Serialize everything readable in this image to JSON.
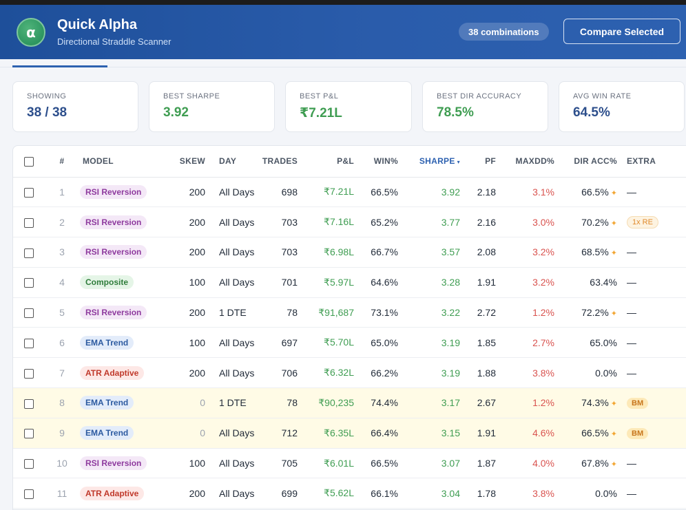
{
  "header": {
    "logo_glyph": "α",
    "title": "Quick Alpha",
    "subtitle": "Directional Straddle Scanner",
    "combinations": "38 combinations",
    "compare_label": "Compare Selected"
  },
  "stats": [
    {
      "label": "SHOWING",
      "value": "38 / 38"
    },
    {
      "label": "BEST SHARPE",
      "value": "3.92"
    },
    {
      "label": "BEST P&L",
      "value": "₹7.21L"
    },
    {
      "label": "BEST DIR ACCURACY",
      "value": "78.5%"
    },
    {
      "label": "AVG WIN RATE",
      "value": "64.5%"
    }
  ],
  "columns": {
    "num": "#",
    "model": "MODEL",
    "skew": "SKEW",
    "day": "DAY",
    "trades": "TRADES",
    "pnl": "P&L",
    "win": "WIN%",
    "sharpe": "SHARPE",
    "sort_glyph": "▾",
    "pf": "PF",
    "maxdd": "MAXDD%",
    "diracc": "DIR ACC%",
    "extra": "EXTRA"
  },
  "rows": [
    {
      "num": "1",
      "model": "RSI Reversion",
      "skew": "200",
      "day": "All Days",
      "trades": "698",
      "pnl": "₹7.21L",
      "win": "66.5%",
      "sharpe": "3.92",
      "pf": "2.18",
      "maxdd": "3.1%",
      "diracc": "66.5%",
      "star": "✦",
      "extra": "—"
    },
    {
      "num": "2",
      "model": "RSI Reversion",
      "skew": "200",
      "day": "All Days",
      "trades": "703",
      "pnl": "₹7.16L",
      "win": "65.2%",
      "sharpe": "3.77",
      "pf": "2.16",
      "maxdd": "3.0%",
      "diracc": "70.2%",
      "star": "✦",
      "extra": "1x RE"
    },
    {
      "num": "3",
      "model": "RSI Reversion",
      "skew": "200",
      "day": "All Days",
      "trades": "703",
      "pnl": "₹6.98L",
      "win": "66.7%",
      "sharpe": "3.57",
      "pf": "2.08",
      "maxdd": "3.2%",
      "diracc": "68.5%",
      "star": "✦",
      "extra": "—"
    },
    {
      "num": "4",
      "model": "Composite",
      "skew": "100",
      "day": "All Days",
      "trades": "701",
      "pnl": "₹5.97L",
      "win": "64.6%",
      "sharpe": "3.28",
      "pf": "1.91",
      "maxdd": "3.2%",
      "diracc": "63.4%",
      "star": "",
      "extra": "—"
    },
    {
      "num": "5",
      "model": "RSI Reversion",
      "skew": "200",
      "day": "1 DTE",
      "trades": "78",
      "pnl": "₹91,687",
      "win": "73.1%",
      "sharpe": "3.22",
      "pf": "2.72",
      "maxdd": "1.2%",
      "diracc": "72.2%",
      "star": "✦",
      "extra": "—"
    },
    {
      "num": "6",
      "model": "EMA Trend",
      "skew": "100",
      "day": "All Days",
      "trades": "697",
      "pnl": "₹5.70L",
      "win": "65.0%",
      "sharpe": "3.19",
      "pf": "1.85",
      "maxdd": "2.7%",
      "diracc": "65.0%",
      "star": "",
      "extra": "—"
    },
    {
      "num": "7",
      "model": "ATR Adaptive",
      "skew": "200",
      "day": "All Days",
      "trades": "706",
      "pnl": "₹6.32L",
      "win": "66.2%",
      "sharpe": "3.19",
      "pf": "1.88",
      "maxdd": "3.8%",
      "diracc": "0.0%",
      "star": "",
      "extra": "—"
    },
    {
      "num": "8",
      "model": "EMA Trend",
      "skew": "0",
      "day": "1 DTE",
      "trades": "78",
      "pnl": "₹90,235",
      "win": "74.4%",
      "sharpe": "3.17",
      "pf": "2.67",
      "maxdd": "1.2%",
      "diracc": "74.3%",
      "star": "✦",
      "extra": "BM"
    },
    {
      "num": "9",
      "model": "EMA Trend",
      "skew": "0",
      "day": "All Days",
      "trades": "712",
      "pnl": "₹6.35L",
      "win": "66.4%",
      "sharpe": "3.15",
      "pf": "1.91",
      "maxdd": "4.6%",
      "diracc": "66.5%",
      "star": "✦",
      "extra": "BM"
    },
    {
      "num": "10",
      "model": "RSI Reversion",
      "skew": "100",
      "day": "All Days",
      "trades": "705",
      "pnl": "₹6.01L",
      "win": "66.5%",
      "sharpe": "3.07",
      "pf": "1.87",
      "maxdd": "4.0%",
      "diracc": "67.8%",
      "star": "✦",
      "extra": "—"
    },
    {
      "num": "11",
      "model": "ATR Adaptive",
      "skew": "200",
      "day": "All Days",
      "trades": "699",
      "pnl": "₹5.62L",
      "win": "66.1%",
      "sharpe": "3.04",
      "pf": "1.78",
      "maxdd": "3.8%",
      "diracc": "0.0%",
      "star": "",
      "extra": "—"
    }
  ]
}
